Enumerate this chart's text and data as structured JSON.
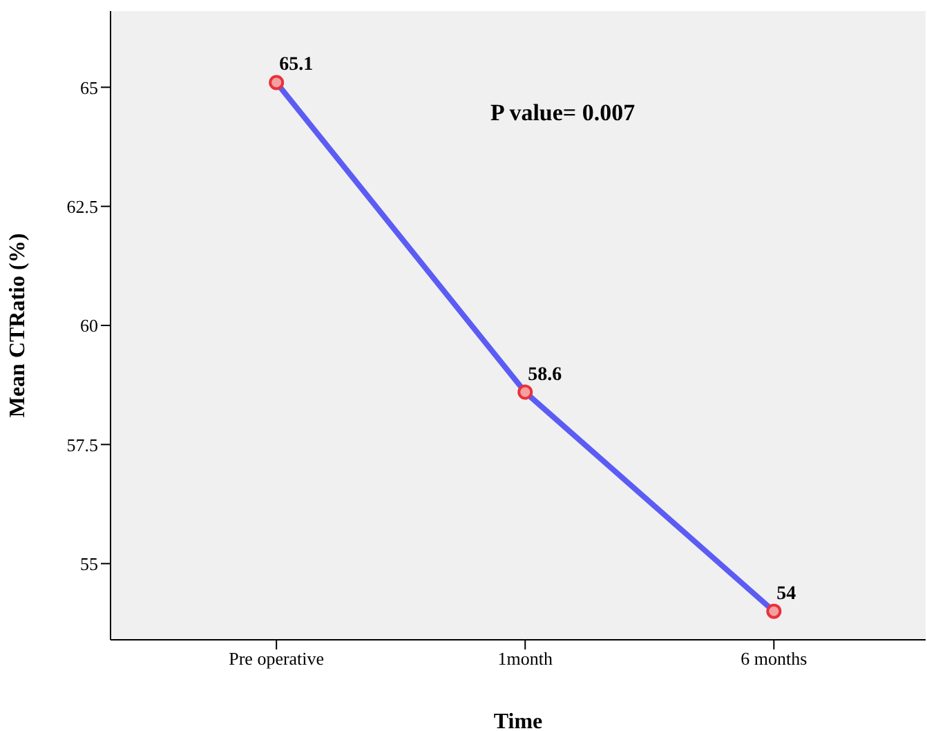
{
  "chart_data": {
    "type": "line",
    "xlabel": "Time",
    "ylabel": "Mean CTRatio (%)",
    "categories": [
      "Pre operative",
      "1month",
      "6 months"
    ],
    "series": [
      {
        "color": "#5c5cf5",
        "colors": [
          "#e8323c",
          "#e8323c",
          "#e8323c"
        ],
        "values": [
          65.1,
          58.6,
          54
        ]
      }
    ],
    "value_labels": [
      "65.1",
      "58.6",
      "54"
    ],
    "ylim": [
      53.4,
      66.6
    ],
    "yticks": [
      55,
      57.5,
      60,
      62.5,
      65
    ],
    "annotations": [
      "P value= 0.007"
    ],
    "grid": false,
    "legend": false,
    "marker": "circle",
    "line_style": "solid"
  }
}
